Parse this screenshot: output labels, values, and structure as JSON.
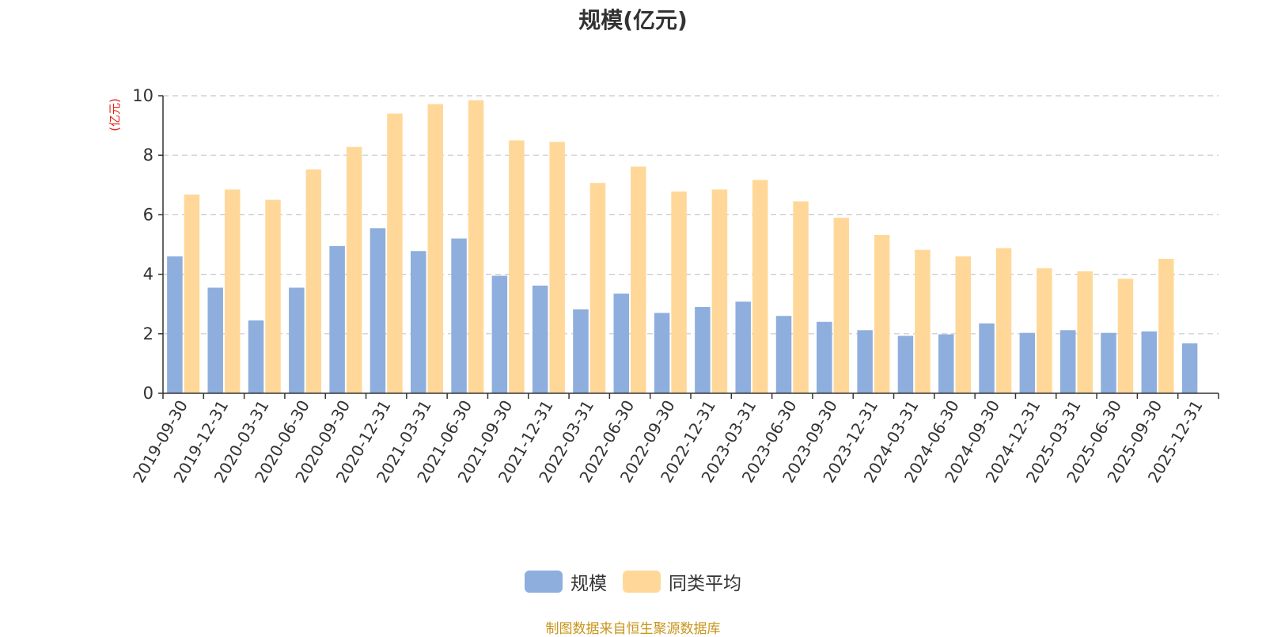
{
  "chart_data": {
    "type": "bar",
    "title": "规模(亿元)",
    "unit_label": "(亿元)",
    "categories": [
      "2019-09-30",
      "2019-12-31",
      "2020-03-31",
      "2020-06-30",
      "2020-09-30",
      "2020-12-31",
      "2021-03-31",
      "2021-06-30",
      "2021-09-30",
      "2021-12-31",
      "2022-03-31",
      "2022-06-30",
      "2022-09-30",
      "2022-12-31",
      "2023-03-31",
      "2023-06-30",
      "2023-09-30",
      "2023-12-31",
      "2024-03-31",
      "2024-06-30",
      "2024-09-30",
      "2024-12-31",
      "2025-03-31",
      "2025-06-30",
      "2025-09-30",
      "2025-12-31"
    ],
    "series": [
      {
        "name": "规模",
        "color": "#8eaedd",
        "values": [
          4.6,
          3.55,
          2.45,
          3.55,
          4.95,
          5.55,
          4.78,
          5.2,
          3.95,
          3.62,
          2.82,
          3.35,
          2.7,
          2.9,
          3.08,
          2.6,
          2.4,
          2.12,
          1.93,
          1.98,
          2.35,
          2.03,
          2.12,
          2.03,
          2.08,
          1.68
        ]
      },
      {
        "name": "同类平均",
        "color": "#ffd899",
        "values": [
          6.68,
          6.85,
          6.5,
          7.52,
          8.28,
          9.4,
          9.72,
          9.85,
          8.5,
          8.45,
          7.07,
          7.62,
          6.78,
          6.85,
          7.17,
          6.45,
          5.9,
          5.32,
          4.82,
          4.6,
          4.88,
          4.2,
          4.1,
          3.85,
          4.52,
          null
        ]
      }
    ],
    "ylim": [
      0,
      10
    ],
    "yticks": [
      0,
      2,
      4,
      6,
      8,
      10
    ],
    "grid": true,
    "legend_position": "bottom-center"
  },
  "footer": {
    "source": "制图数据来自恒生聚源数据库"
  }
}
